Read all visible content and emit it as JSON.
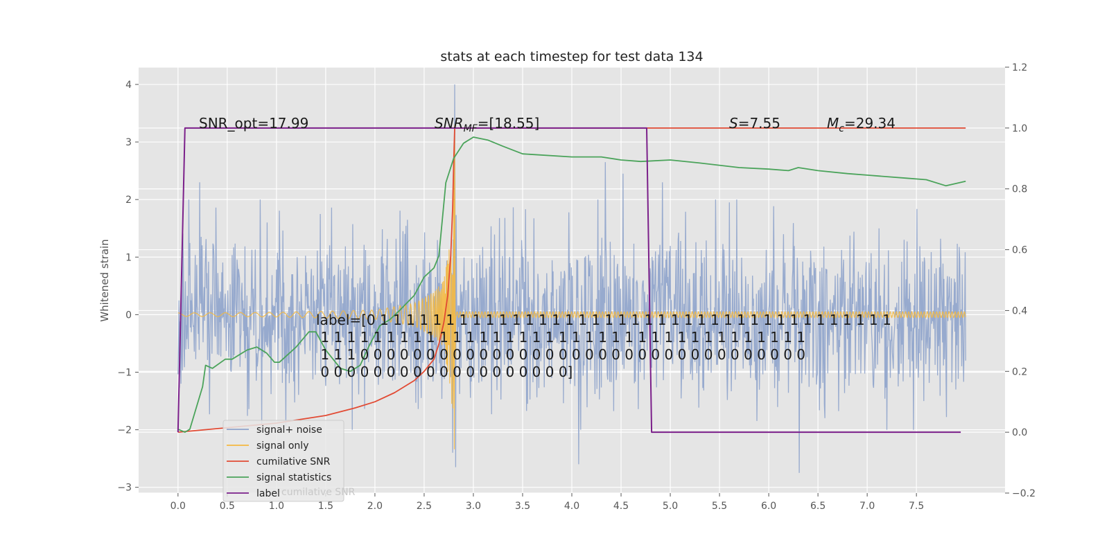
{
  "chart_data": {
    "type": "line",
    "title": "stats at each timestep for test data 134",
    "ylabel": "Whitened strain",
    "xlabel": "",
    "xlim": [
      -0.4,
      8.4
    ],
    "ylim": [
      -3.1,
      4.3
    ],
    "y2lim": [
      -0.2,
      1.2
    ],
    "x_ticks": [
      "0.0",
      "0.5",
      "1.0",
      "1.5",
      "2.0",
      "2.5",
      "3.0",
      "3.5",
      "4.0",
      "4.5",
      "5.0",
      "5.5",
      "6.0",
      "6.5",
      "7.0",
      "7.5"
    ],
    "y_ticks": [
      "4",
      "3",
      "2",
      "1",
      "0",
      "−1",
      "−2",
      "−3"
    ],
    "y2_ticks": [
      "1.2",
      "1.0",
      "0.8",
      "0.6",
      "0.4",
      "0.2",
      "0.0",
      "−0.2"
    ],
    "grid": true,
    "legend_placement": "lower-left",
    "colors": {
      "noise": "#8ea3cb",
      "signal": "#f5b940",
      "signal_fill": "#d9a45a",
      "cumulative": "#e24a33",
      "statistics": "#4aa35a",
      "label": "#7b1f8a",
      "background": "#e5e5e5",
      "grid": "#ffffff"
    },
    "annotations": {
      "snr_opt": "SNR_opt=17.99",
      "snr_mf_prefix": "SNR",
      "snr_mf_sub": "MF",
      "snr_mf_value": "=[18.55]",
      "s_var": "S",
      "s_value": "=7.55",
      "mc_var": "M",
      "mc_sub": "c",
      "mc_value": "=29.34",
      "label_lines": [
        "label=[0 1 1 1 1 1 1 1 1 1 1 1 1 1 1 1 1 1 1 1 1 1 1 1 1 1 1 1 1 1 1 1 1 1 1 1 1 1 1 1",
        " 1 1 1 1 1 1 1 1 1 1 1 1 1 1 1 1 1 1 1 1 1 1 1 1 1 1 1 1 1 1 1 1 1 1 1 1 1",
        " 1 1 1 0 0 0 0 0 0 0 0 0 0 0 0 0 0 0 0 0 0 0 0 0 0 0 0 0 0 0 0 0 0 0 0 0 0",
        " 0 0 0 0 0 0 0 0 0 0 0 0 0 0 0 0 0 0 0]"
      ]
    },
    "series": [
      {
        "name": "signal+ noise",
        "axis": "left",
        "note": "white noise, approx. std 0.75, x from 0 to 8.0",
        "spikes": [
          [
            0.03,
            -1.2
          ],
          [
            0.22,
            2.3
          ],
          [
            2.81,
            4.0
          ],
          [
            2.79,
            -2.4
          ],
          [
            2.82,
            -2.65
          ],
          [
            4.07,
            -2.6
          ],
          [
            4.34,
            2.65
          ],
          [
            4.52,
            2.45
          ],
          [
            4.92,
            2.3
          ],
          [
            6.31,
            -2.75
          ],
          [
            5.6,
            1.95
          ],
          [
            7.2,
            -2.0
          ],
          [
            0.85,
            -1.9
          ]
        ]
      },
      {
        "name": "signal only",
        "axis": "left",
        "note": "chirp centred on 0 with growing amplitude, merger at 2.81",
        "envelope": [
          [
            0.0,
            0.03
          ],
          [
            1.0,
            0.04
          ],
          [
            2.0,
            0.08
          ],
          [
            2.4,
            0.2
          ],
          [
            2.6,
            0.4
          ],
          [
            2.7,
            0.6
          ],
          [
            2.76,
            1.2
          ],
          [
            2.79,
            2.0
          ],
          [
            2.81,
            3.3
          ],
          [
            2.82,
            -2.8
          ],
          [
            2.84,
            0.05
          ],
          [
            8.0,
            0.05
          ]
        ]
      },
      {
        "name": "cumilative SNR",
        "axis": "right",
        "values": [
          [
            0.0,
            0.0
          ],
          [
            0.5,
            0.015
          ],
          [
            1.0,
            0.03
          ],
          [
            1.5,
            0.055
          ],
          [
            1.8,
            0.08
          ],
          [
            2.0,
            0.1
          ],
          [
            2.2,
            0.13
          ],
          [
            2.4,
            0.17
          ],
          [
            2.5,
            0.2
          ],
          [
            2.6,
            0.24
          ],
          [
            2.65,
            0.29
          ],
          [
            2.7,
            0.36
          ],
          [
            2.74,
            0.45
          ],
          [
            2.77,
            0.58
          ],
          [
            2.79,
            0.74
          ],
          [
            2.8,
            0.88
          ],
          [
            2.81,
            1.0
          ],
          [
            8.0,
            1.0
          ]
        ]
      },
      {
        "name": "signal statistics",
        "axis": "right",
        "values": [
          [
            0.0,
            0.01
          ],
          [
            0.07,
            0.0
          ],
          [
            0.12,
            0.01
          ],
          [
            0.25,
            0.15
          ],
          [
            0.28,
            0.22
          ],
          [
            0.35,
            0.21
          ],
          [
            0.48,
            0.24
          ],
          [
            0.55,
            0.24
          ],
          [
            0.7,
            0.27
          ],
          [
            0.8,
            0.28
          ],
          [
            0.9,
            0.26
          ],
          [
            0.98,
            0.23
          ],
          [
            1.03,
            0.23
          ],
          [
            1.2,
            0.28
          ],
          [
            1.33,
            0.33
          ],
          [
            1.4,
            0.33
          ],
          [
            1.5,
            0.27
          ],
          [
            1.65,
            0.21
          ],
          [
            1.75,
            0.2
          ],
          [
            1.85,
            0.22
          ],
          [
            1.95,
            0.29
          ],
          [
            2.05,
            0.35
          ],
          [
            2.15,
            0.37
          ],
          [
            2.25,
            0.4
          ],
          [
            2.4,
            0.45
          ],
          [
            2.5,
            0.51
          ],
          [
            2.6,
            0.54
          ],
          [
            2.65,
            0.58
          ],
          [
            2.72,
            0.82
          ],
          [
            2.8,
            0.9
          ],
          [
            2.9,
            0.95
          ],
          [
            3.0,
            0.97
          ],
          [
            3.15,
            0.96
          ],
          [
            3.3,
            0.94
          ],
          [
            3.5,
            0.915
          ],
          [
            4.0,
            0.905
          ],
          [
            4.3,
            0.905
          ],
          [
            4.5,
            0.895
          ],
          [
            4.7,
            0.89
          ],
          [
            5.0,
            0.895
          ],
          [
            5.3,
            0.885
          ],
          [
            5.7,
            0.87
          ],
          [
            6.0,
            0.865
          ],
          [
            6.2,
            0.86
          ],
          [
            6.3,
            0.87
          ],
          [
            6.5,
            0.86
          ],
          [
            6.8,
            0.85
          ],
          [
            7.0,
            0.845
          ],
          [
            7.2,
            0.84
          ],
          [
            7.4,
            0.835
          ],
          [
            7.6,
            0.83
          ],
          [
            7.8,
            0.81
          ],
          [
            8.0,
            0.825
          ]
        ]
      },
      {
        "name": "label",
        "axis": "right",
        "values": [
          [
            0.0,
            0.0
          ],
          [
            0.07,
            1.0
          ],
          [
            4.76,
            1.0
          ],
          [
            4.81,
            0.0
          ],
          [
            7.95,
            0.0
          ]
        ]
      }
    ]
  },
  "legend": {
    "items": [
      "signal+ noise",
      "signal only",
      "cumilative SNR",
      "signal statistics",
      "label"
    ],
    "ghost_text": "cumilative SNR"
  }
}
